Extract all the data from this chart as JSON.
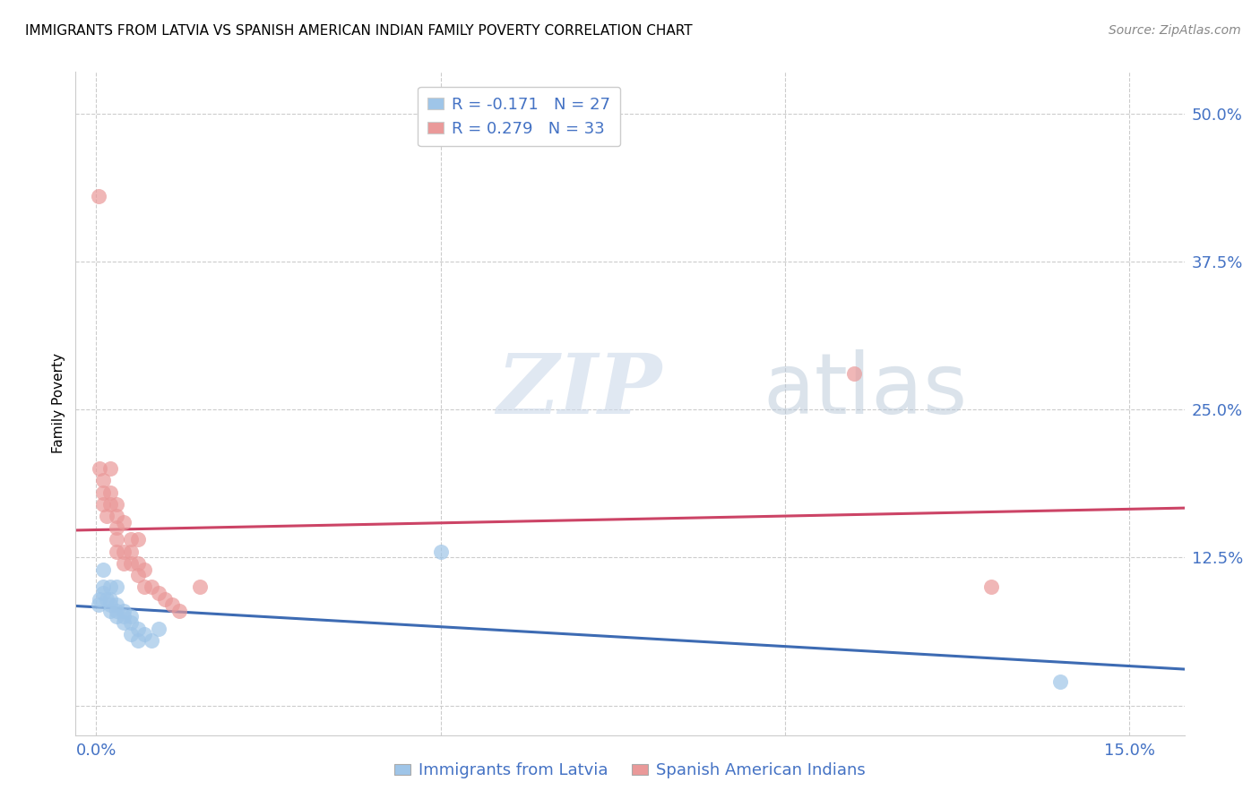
{
  "title": "IMMIGRANTS FROM LATVIA VS SPANISH AMERICAN INDIAN FAMILY POVERTY CORRELATION CHART",
  "source": "Source: ZipAtlas.com",
  "ylabel": "Family Poverty",
  "x_ticks": [
    0.0,
    0.05,
    0.1,
    0.15
  ],
  "x_tick_labels": [
    "0.0%",
    "",
    "",
    "15.0%"
  ],
  "y_ticks": [
    0.0,
    0.125,
    0.25,
    0.375,
    0.5
  ],
  "y_tick_labels": [
    "",
    "12.5%",
    "25.0%",
    "37.5%",
    "50.0%"
  ],
  "xlim": [
    -0.003,
    0.158
  ],
  "ylim": [
    -0.025,
    0.535
  ],
  "blue_R": -0.171,
  "blue_N": 27,
  "pink_R": 0.279,
  "pink_N": 33,
  "blue_color": "#9fc5e8",
  "pink_color": "#ea9999",
  "blue_line_color": "#3d6bb3",
  "pink_line_color": "#cc4466",
  "watermark_zip": "ZIP",
  "watermark_atlas": "atlas",
  "legend_label_blue": "Immigrants from Latvia",
  "legend_label_pink": "Spanish American Indians",
  "blue_x": [
    0.0003,
    0.0005,
    0.001,
    0.001,
    0.001,
    0.0015,
    0.002,
    0.002,
    0.002,
    0.002,
    0.003,
    0.003,
    0.003,
    0.003,
    0.004,
    0.004,
    0.004,
    0.005,
    0.005,
    0.005,
    0.006,
    0.006,
    0.007,
    0.008,
    0.009,
    0.05,
    0.14
  ],
  "blue_y": [
    0.085,
    0.09,
    0.095,
    0.1,
    0.115,
    0.09,
    0.08,
    0.085,
    0.09,
    0.1,
    0.075,
    0.08,
    0.085,
    0.1,
    0.07,
    0.075,
    0.08,
    0.06,
    0.07,
    0.075,
    0.055,
    0.065,
    0.06,
    0.055,
    0.065,
    0.13,
    0.02
  ],
  "pink_x": [
    0.0003,
    0.0005,
    0.001,
    0.001,
    0.001,
    0.0015,
    0.002,
    0.002,
    0.002,
    0.003,
    0.003,
    0.003,
    0.003,
    0.003,
    0.004,
    0.004,
    0.004,
    0.005,
    0.005,
    0.005,
    0.006,
    0.006,
    0.006,
    0.007,
    0.007,
    0.008,
    0.009,
    0.01,
    0.011,
    0.012,
    0.015,
    0.11,
    0.13
  ],
  "pink_y": [
    0.43,
    0.2,
    0.17,
    0.18,
    0.19,
    0.16,
    0.17,
    0.18,
    0.2,
    0.13,
    0.14,
    0.15,
    0.16,
    0.17,
    0.12,
    0.13,
    0.155,
    0.12,
    0.13,
    0.14,
    0.11,
    0.12,
    0.14,
    0.1,
    0.115,
    0.1,
    0.095,
    0.09,
    0.085,
    0.08,
    0.1,
    0.28,
    0.1
  ]
}
